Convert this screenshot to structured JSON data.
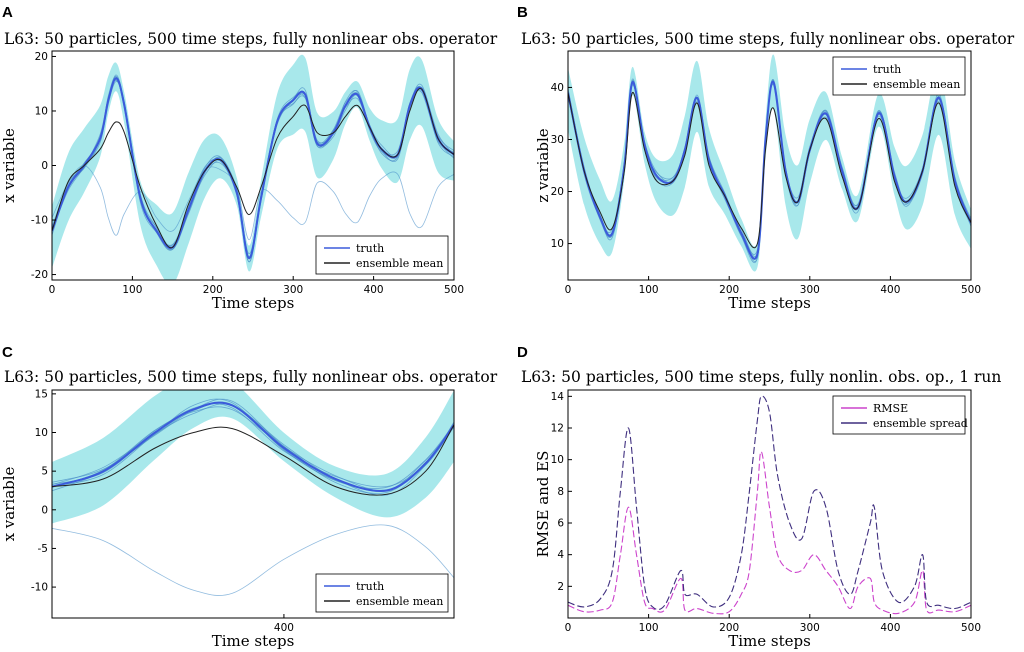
{
  "chart_data": [
    {
      "panel": "A",
      "type": "line",
      "title": "L63: 50 particles, 500 time steps, fully nonlinear obs. operator",
      "xlabel": "Time steps",
      "ylabel": "x variable",
      "xlim": [
        0,
        500
      ],
      "ylim": [
        -21,
        21
      ],
      "xticks": [
        0,
        100,
        200,
        300,
        400,
        500
      ],
      "yticks": [
        -20,
        -10,
        0,
        10,
        20
      ],
      "legend": {
        "placement": "lower-right",
        "entries": [
          "truth",
          "ensemble mean"
        ]
      },
      "series": [
        {
          "name": "truth",
          "x": [
            0,
            20,
            40,
            60,
            70,
            80,
            90,
            110,
            130,
            150,
            170,
            190,
            210,
            230,
            245,
            260,
            280,
            300,
            315,
            330,
            350,
            365,
            380,
            395,
            410,
            430,
            445,
            460,
            480,
            500
          ],
          "values": [
            -12,
            -4,
            0,
            5,
            12,
            16,
            11,
            -6,
            -12,
            -15,
            -8,
            -1,
            1,
            -5,
            -17,
            -6,
            8,
            12,
            13,
            4,
            6,
            11,
            13,
            7,
            3,
            2,
            11,
            14,
            5,
            2
          ]
        },
        {
          "name": "ensemble mean",
          "x": [
            0,
            20,
            40,
            60,
            70,
            80,
            90,
            110,
            130,
            150,
            170,
            190,
            210,
            230,
            245,
            260,
            280,
            300,
            315,
            330,
            350,
            365,
            380,
            395,
            410,
            430,
            445,
            460,
            480,
            500
          ],
          "values": [
            -12,
            -3,
            0,
            3,
            6,
            8,
            6,
            -4,
            -11,
            -15,
            -7,
            -1,
            1,
            -4,
            -9,
            -4,
            5,
            9,
            11,
            6,
            6,
            9,
            11,
            7,
            3,
            2,
            10,
            14,
            5,
            2
          ]
        }
      ]
    },
    {
      "panel": "B",
      "type": "line",
      "title": "L63: 50 particles, 500 time steps, fully nonlinear obs. operator",
      "xlabel": "Time steps",
      "ylabel": "z variable",
      "xlim": [
        0,
        500
      ],
      "ylim": [
        3,
        47
      ],
      "xticks": [
        0,
        100,
        200,
        300,
        400,
        500
      ],
      "yticks": [
        10,
        20,
        30,
        40
      ],
      "legend": {
        "placement": "top-right",
        "entries": [
          "truth",
          "ensemble mean"
        ]
      },
      "series": [
        {
          "name": "truth",
          "x": [
            0,
            20,
            40,
            55,
            70,
            80,
            95,
            110,
            130,
            145,
            160,
            175,
            195,
            215,
            235,
            245,
            255,
            270,
            285,
            300,
            320,
            340,
            360,
            385,
            405,
            420,
            440,
            460,
            480,
            500
          ],
          "values": [
            39,
            24,
            15,
            12,
            25,
            41,
            29,
            23,
            22,
            28,
            38,
            26,
            19,
            12,
            8,
            30,
            41,
            24,
            18,
            28,
            35,
            24,
            17,
            35,
            23,
            18,
            24,
            38,
            22,
            14
          ]
        },
        {
          "name": "ensemble mean",
          "x": [
            0,
            20,
            40,
            55,
            70,
            80,
            95,
            110,
            130,
            145,
            160,
            175,
            195,
            215,
            235,
            245,
            255,
            270,
            285,
            300,
            320,
            340,
            360,
            385,
            405,
            420,
            440,
            460,
            480,
            500
          ],
          "values": [
            39,
            24,
            16,
            13,
            24,
            39,
            28,
            22,
            22,
            27,
            37,
            25,
            19,
            13,
            10,
            28,
            36,
            23,
            18,
            28,
            34,
            23,
            17,
            34,
            22,
            18,
            24,
            37,
            21,
            14
          ]
        }
      ]
    },
    {
      "panel": "C",
      "type": "line",
      "title": "L63: 50 particles, 500 time steps, fully nonlinear obs. operator",
      "xlabel": "Time steps",
      "ylabel": "x variable",
      "xlim": [
        310,
        466
      ],
      "ylim": [
        -14,
        15.5
      ],
      "xticks": [
        400
      ],
      "yticks": [
        -10,
        -5,
        0,
        5,
        10,
        15
      ],
      "legend": {
        "placement": "lower-right",
        "entries": [
          "truth",
          "ensemble mean"
        ]
      },
      "series": [
        {
          "name": "truth",
          "x": [
            310,
            330,
            350,
            365,
            380,
            400,
            420,
            440,
            455,
            466
          ],
          "values": [
            3,
            5,
            10,
            13,
            13.5,
            8,
            4,
            2.5,
            6,
            11
          ]
        },
        {
          "name": "ensemble mean",
          "x": [
            310,
            330,
            350,
            365,
            380,
            400,
            420,
            440,
            455,
            466
          ],
          "values": [
            3,
            4,
            8,
            10,
            10.5,
            7,
            3,
            2,
            5,
            11
          ]
        }
      ]
    },
    {
      "panel": "D",
      "type": "line",
      "title": "L63: 50 particles, 500 time steps, fully nonlin. obs. op., 1 run",
      "xlabel": "Time steps",
      "ylabel": "RMSE and ES",
      "xlim": [
        0,
        500
      ],
      "ylim": [
        0,
        14.4
      ],
      "xticks": [
        0,
        100,
        200,
        300,
        400,
        500
      ],
      "yticks": [
        2,
        4,
        6,
        8,
        10,
        12,
        14
      ],
      "legend": {
        "placement": "top-right",
        "entries": [
          "RMSE",
          "ensemble spread"
        ]
      },
      "series": [
        {
          "name": "RMSE",
          "x": [
            0,
            20,
            40,
            55,
            65,
            75,
            85,
            95,
            105,
            120,
            140,
            145,
            160,
            180,
            200,
            215,
            225,
            235,
            240,
            250,
            260,
            275,
            290,
            305,
            320,
            335,
            350,
            360,
            375,
            380,
            390,
            410,
            430,
            440,
            445,
            460,
            480,
            500
          ],
          "values": [
            0.8,
            0.4,
            0.5,
            1,
            4,
            7,
            4,
            1,
            0.6,
            0.5,
            2.5,
            0.5,
            0.6,
            0.3,
            0.4,
            1.5,
            3,
            8,
            10.5,
            7,
            4,
            3,
            3,
            4,
            3,
            2,
            0.6,
            2,
            2.5,
            1,
            0.5,
            0.3,
            1,
            3,
            0.5,
            0.5,
            0.4,
            0.8
          ]
        },
        {
          "name": "ensemble spread",
          "x": [
            0,
            20,
            40,
            55,
            65,
            75,
            85,
            95,
            105,
            120,
            140,
            145,
            160,
            180,
            200,
            215,
            225,
            235,
            240,
            250,
            260,
            275,
            290,
            305,
            320,
            335,
            350,
            360,
            375,
            380,
            390,
            410,
            430,
            440,
            445,
            460,
            480,
            500
          ],
          "values": [
            1,
            0.7,
            1.2,
            3,
            8,
            12,
            7,
            2,
            0.7,
            0.8,
            3,
            1.5,
            1.5,
            0.7,
            1.3,
            4,
            8,
            12.5,
            14,
            13,
            9,
            6,
            5,
            8,
            7,
            3,
            1.5,
            3,
            6,
            7,
            3,
            1,
            2,
            4,
            1,
            0.8,
            0.6,
            1
          ]
        }
      ]
    }
  ]
}
